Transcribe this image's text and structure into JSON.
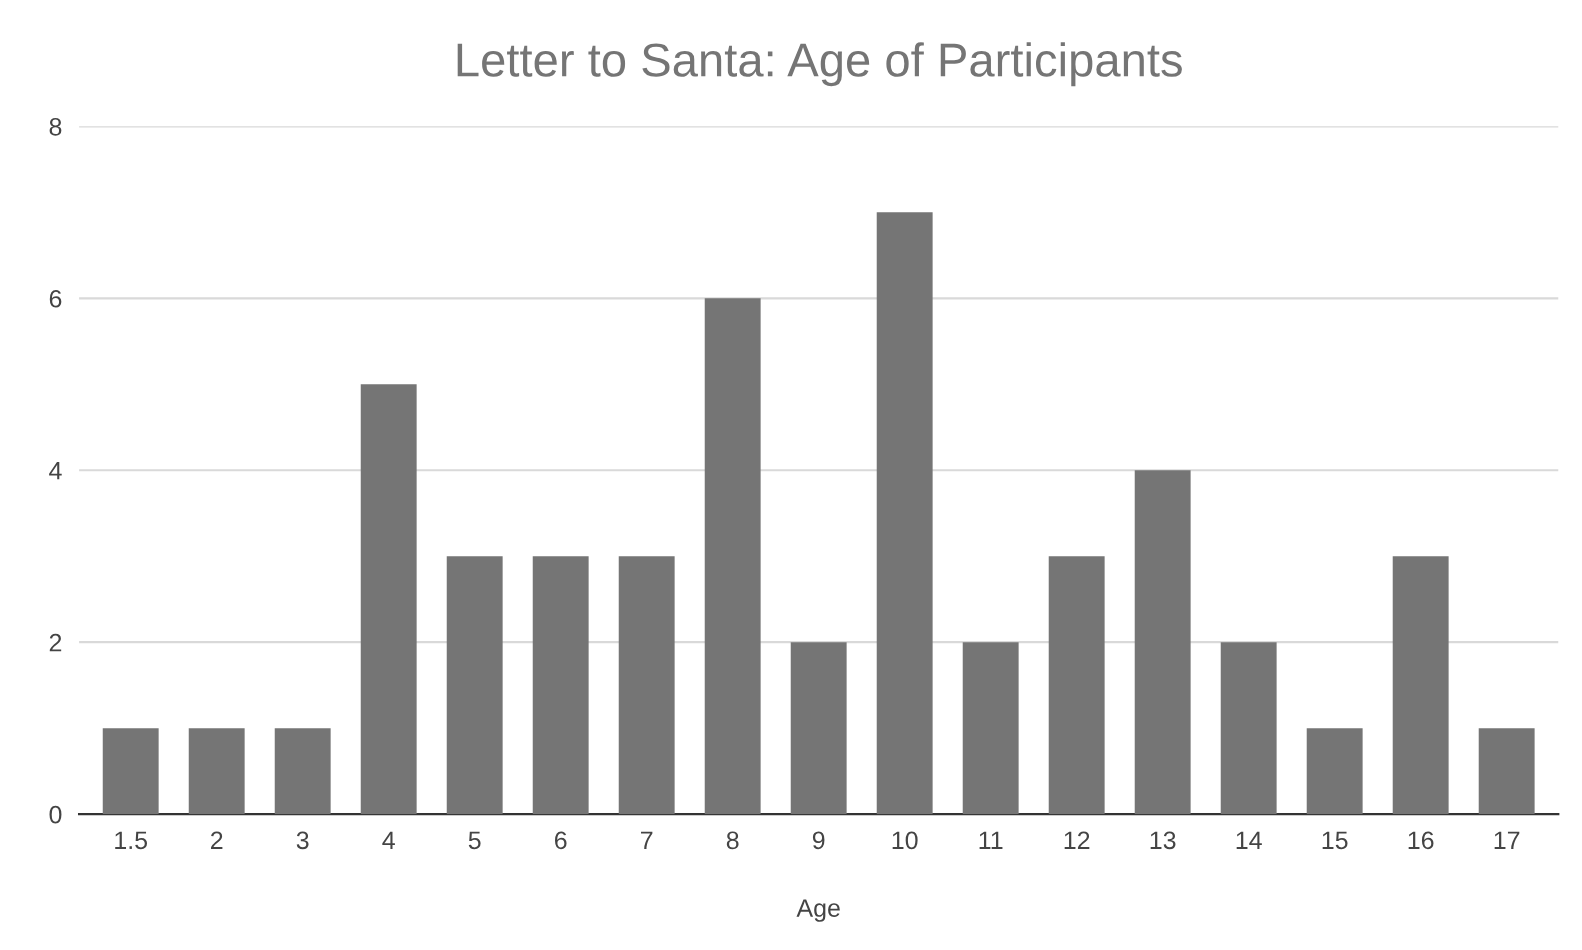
{
  "chart_data": {
    "type": "bar",
    "title": "Letter to Santa: Age of Participants",
    "xlabel": "Age",
    "categories": [
      "1.5",
      "2",
      "3",
      "4",
      "5",
      "6",
      "7",
      "8",
      "9",
      "10",
      "11",
      "12",
      "13",
      "14",
      "15",
      "16",
      "17"
    ],
    "values": [
      1,
      1,
      1,
      5,
      3,
      3,
      3,
      6,
      2,
      7,
      2,
      3,
      4,
      2,
      1,
      3,
      1
    ],
    "color": "#757575",
    "ylim": [
      0,
      8
    ],
    "yticks": [
      0,
      2,
      4,
      6,
      8
    ],
    "grid": "y",
    "legend": false
  }
}
